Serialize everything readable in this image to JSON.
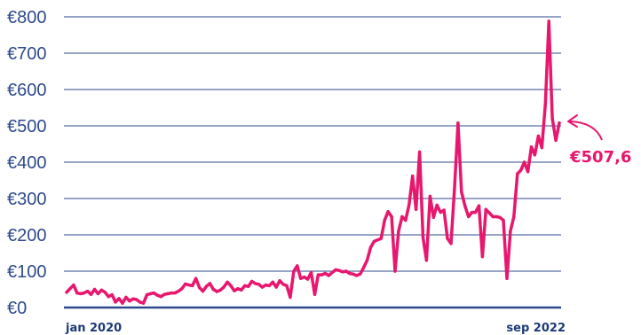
{
  "chart_data": {
    "type": "line",
    "ylim": [
      0,
      800
    ],
    "yticks": [
      {
        "value": 0,
        "label": "€0"
      },
      {
        "value": 100,
        "label": "€100"
      },
      {
        "value": 200,
        "label": "€200"
      },
      {
        "value": 300,
        "label": "€300"
      },
      {
        "value": 400,
        "label": "€400"
      },
      {
        "value": 500,
        "label": "€500"
      },
      {
        "value": 600,
        "label": "€600"
      },
      {
        "value": 700,
        "label": "€700"
      },
      {
        "value": 800,
        "label": "€800"
      }
    ],
    "x_start_label": "jan 2020",
    "x_end_label": "sep 2022",
    "annotation": "€507,6",
    "grid": true,
    "colors": {
      "line": "#e8176e",
      "grid": "#2e4a8c",
      "axis_text": "#2e4a8c",
      "label_text": "#1f3a78",
      "annotation": "#e8176e"
    },
    "series": [
      {
        "values": [
          42,
          52,
          62,
          40,
          38,
          40,
          45,
          36,
          50,
          38,
          48,
          42,
          30,
          35,
          15,
          25,
          12,
          28,
          18,
          24,
          22,
          15,
          12,
          35,
          38,
          40,
          34,
          30,
          36,
          38,
          40,
          40,
          45,
          52,
          65,
          62,
          60,
          80,
          55,
          45,
          58,
          66,
          50,
          44,
          48,
          56,
          70,
          60,
          46,
          52,
          48,
          60,
          58,
          72,
          66,
          64,
          56,
          62,
          60,
          70,
          56,
          74,
          64,
          60,
          28,
          100,
          115,
          80,
          84,
          78,
          96,
          36,
          90,
          90,
          94,
          88,
          96,
          104,
          102,
          98,
          100,
          94,
          92,
          88,
          92,
          110,
          130,
          165,
          182,
          186,
          190,
          240,
          264,
          250,
          100,
          210,
          250,
          240,
          282,
          362,
          270,
          428,
          192,
          130,
          306,
          248,
          282,
          262,
          268,
          190,
          176,
          326,
          508,
          318,
          280,
          250,
          262,
          262,
          280,
          140,
          270,
          260,
          250,
          250,
          248,
          240,
          80,
          210,
          250,
          368,
          378,
          400,
          374,
          442,
          420,
          472,
          440,
          560,
          788,
          520,
          460,
          508
        ]
      }
    ]
  }
}
